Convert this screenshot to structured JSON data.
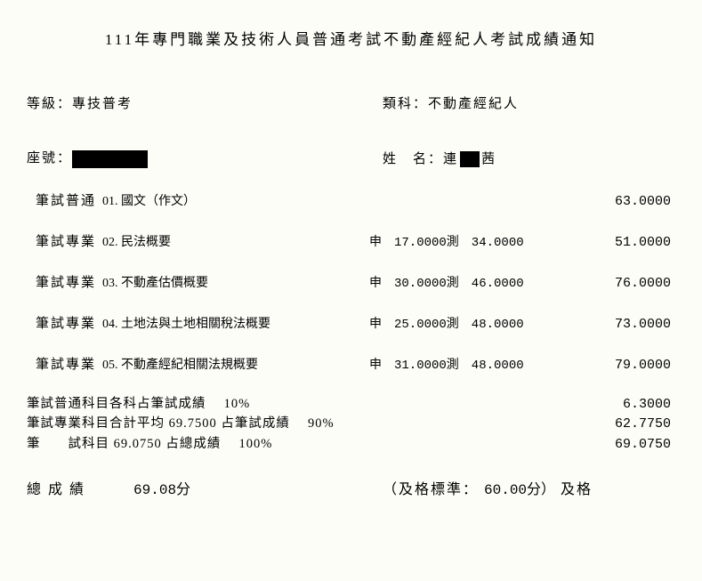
{
  "title": "111年專門職業及技術人員普通考試不動產經紀人考試成績通知",
  "grade_label": "等級：",
  "grade_value": "專技普考",
  "category_label": "類科：",
  "category_value": "不動產經紀人",
  "seat_label": "座號：",
  "name_label": "姓　名：",
  "name_part1": "連",
  "name_part2": "茜",
  "subjects": {
    "s0": {
      "type": "筆試普通",
      "name": "01. 國文（作文）",
      "mid": "",
      "total": "63.0000"
    },
    "s1": {
      "type": "筆試專業",
      "name": "02. 民法概要",
      "mid": "申　17.0000測　34.0000",
      "total": "51.0000"
    },
    "s2": {
      "type": "筆試專業",
      "name": "03. 不動產估價概要",
      "mid": "申　30.0000測　46.0000",
      "total": "76.0000"
    },
    "s3": {
      "type": "筆試專業",
      "name": "04. 土地法與土地相關稅法概要",
      "mid": "申　25.0000測　48.0000",
      "total": "73.0000"
    },
    "s4": {
      "type": "筆試專業",
      "name": "05. 不動產經紀相關法規概要",
      "mid": "申　31.0000測　48.0000",
      "total": "79.0000"
    }
  },
  "summary": {
    "l1_left": "筆試普通科目各科占筆試成績　 10%",
    "l1_right": "6.3000",
    "l2_left": "筆試專業科目合計平均 69.7500 占筆試成績　 90%",
    "l2_right": "62.7750",
    "l3_left": "筆　　試科目 69.0750 占總成績　 100%",
    "l3_right": "69.0750"
  },
  "final": {
    "left_label": "總成績",
    "score": "69.08分",
    "right_label": "（及格標準：",
    "pass_score": "60.00分）",
    "result": "及格"
  }
}
